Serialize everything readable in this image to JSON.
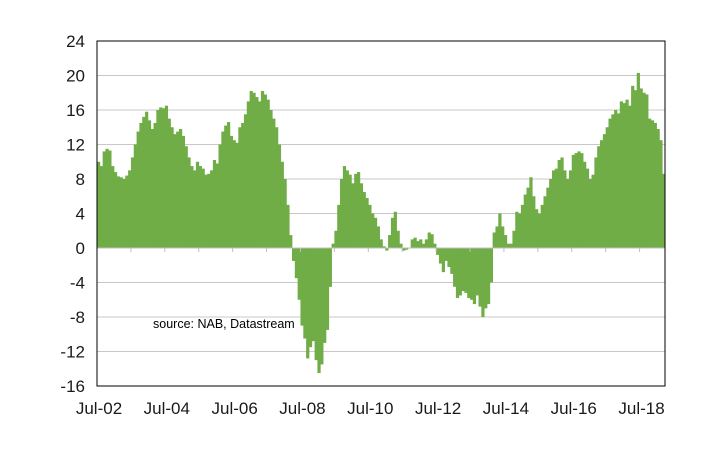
{
  "chart_data": {
    "type": "bar",
    "title": "",
    "xlabel": "",
    "ylabel": "",
    "ylim": [
      -16,
      24
    ],
    "yticks": [
      -16,
      -12,
      -8,
      -4,
      0,
      4,
      8,
      12,
      16,
      20,
      24
    ],
    "yticks_display": [
      "-16",
      "-12",
      "-8",
      "-4",
      "0",
      "4",
      "8",
      "12",
      "16",
      "20",
      "24"
    ],
    "xtick_labels": [
      "Jul-02",
      "Jul-04",
      "Jul-06",
      "Jul-08",
      "Jul-10",
      "Jul-12",
      "Jul-14",
      "Jul-16",
      "Jul-18"
    ],
    "xtick_month_index": [
      0,
      24,
      48,
      72,
      96,
      120,
      144,
      168,
      192
    ],
    "start_month": "Jul-02",
    "frequency": "monthly",
    "grid": true,
    "bar_color": "#70ad47",
    "grid_color": "#c8c8c8",
    "annotation": "source:  NAB, Datastream",
    "series": [
      {
        "name": "series-1",
        "values": [
          10.0,
          9.5,
          11.2,
          11.5,
          11.3,
          9.5,
          8.8,
          8.3,
          8.2,
          8.0,
          8.4,
          9.0,
          10.5,
          12.0,
          13.5,
          14.5,
          15.2,
          15.8,
          14.8,
          13.8,
          14.5,
          16.0,
          16.3,
          16.2,
          16.5,
          15.0,
          14.0,
          13.2,
          13.5,
          13.8,
          13.0,
          11.8,
          10.5,
          9.5,
          9.0,
          10.0,
          9.5,
          9.2,
          8.5,
          8.6,
          9.0,
          10.2,
          9.8,
          12.0,
          13.5,
          14.2,
          14.6,
          13.0,
          12.5,
          12.2,
          14.0,
          14.5,
          15.5,
          17.0,
          18.2,
          18.0,
          17.5,
          17.0,
          18.2,
          17.8,
          17.2,
          16.0,
          15.0,
          14.0,
          12.0,
          10.0,
          8.0,
          5.0,
          1.5,
          -1.5,
          -3.5,
          -6.0,
          -9.0,
          -10.5,
          -12.8,
          -11.5,
          -10.8,
          -13.0,
          -14.5,
          -13.5,
          -11.0,
          -9.5,
          -4.5,
          0.5,
          2.0,
          5.0,
          8.0,
          9.5,
          9.0,
          8.5,
          7.5,
          8.6,
          8.8,
          7.5,
          6.5,
          5.8,
          5.0,
          4.0,
          3.5,
          2.5,
          1.0,
          0.2,
          -0.3,
          1.5,
          3.5,
          4.2,
          2.0,
          0.5,
          -0.3,
          -0.2,
          0.0,
          1.0,
          1.2,
          0.8,
          1.0,
          0.5,
          1.0,
          1.8,
          1.6,
          0.5,
          -0.8,
          -1.8,
          -2.8,
          -1.5,
          -2.2,
          -3.0,
          -4.5,
          -5.8,
          -5.5,
          -5.0,
          -5.2,
          -5.8,
          -6.0,
          -6.5,
          -5.5,
          -6.8,
          -8.0,
          -7.0,
          -6.5,
          -4.0,
          1.8,
          2.5,
          4.0,
          2.5,
          1.5,
          0.5,
          0.5,
          2.0,
          4.2,
          4.0,
          5.0,
          6.2,
          7.0,
          8.2,
          6.0,
          4.5,
          4.0,
          5.0,
          6.0,
          7.0,
          8.0,
          9.0,
          9.2,
          10.2,
          10.5,
          9.0,
          8.0,
          9.0,
          10.8,
          11.0,
          11.2,
          11.0,
          10.0,
          9.2,
          8.0,
          8.5,
          10.5,
          11.8,
          12.5,
          13.2,
          14.0,
          15.0,
          15.5,
          16.0,
          15.6,
          17.0,
          16.8,
          17.2,
          16.5,
          18.8,
          18.3,
          20.3,
          18.5,
          18.0,
          17.8,
          15.0,
          14.8,
          14.5,
          13.8,
          12.5,
          8.6
        ]
      }
    ]
  }
}
